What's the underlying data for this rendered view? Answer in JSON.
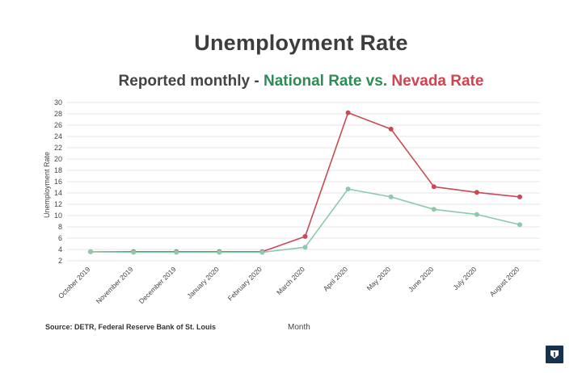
{
  "title": "Unemployment Rate",
  "subtitle": {
    "prefix": "Reported monthly - ",
    "national": "National Rate",
    "middle": " vs. ",
    "nevada": "Nevada Rate"
  },
  "source": "Source: DETR, Federal Reserve Bank of St. Louis",
  "logo_icon": "shield-logo-icon",
  "colors": {
    "national": "#2e8b57",
    "nevada": "#d0434f",
    "national_line": "#8cc9ad",
    "nevada_line": "#c94a55",
    "logo": "#16324f"
  },
  "chart_data": {
    "type": "line",
    "title": "Unemployment Rate",
    "subtitle": "Reported monthly - National Rate vs. Nevada Rate",
    "xlabel": "Month",
    "ylabel": "Unemployment Rate",
    "categories": [
      "October 2019",
      "November 2019",
      "December 2019",
      "January 2020",
      "February 2020",
      "March 2020",
      "April 2020",
      "May 2020",
      "June 2020",
      "July 2020",
      "August 2020"
    ],
    "yticks": [
      2,
      4,
      6,
      8,
      10,
      12,
      14,
      16,
      18,
      20,
      22,
      24,
      26,
      28,
      30
    ],
    "ylim": [
      2,
      30
    ],
    "grid": true,
    "series": [
      {
        "name": "Nevada Rate",
        "values": [
          3.6,
          3.6,
          3.6,
          3.6,
          3.6,
          6.3,
          28.2,
          25.3,
          15.1,
          14.1,
          13.3
        ]
      },
      {
        "name": "National Rate",
        "values": [
          3.6,
          3.5,
          3.5,
          3.5,
          3.5,
          4.4,
          14.7,
          13.3,
          11.1,
          10.2,
          8.4
        ]
      }
    ]
  }
}
